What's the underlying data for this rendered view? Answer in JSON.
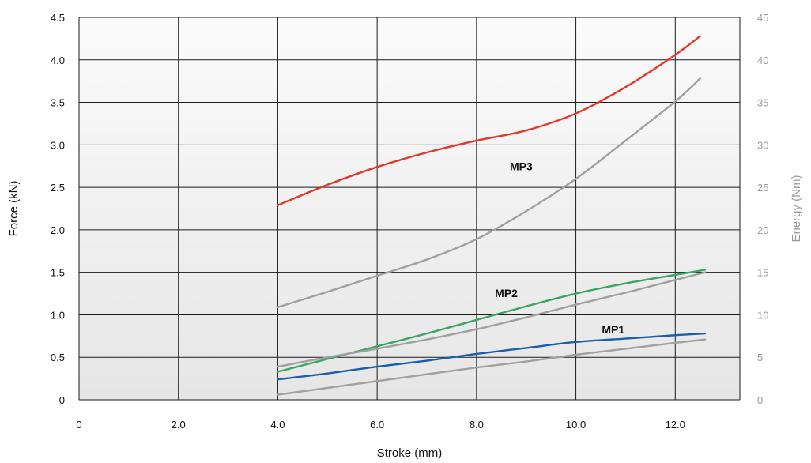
{
  "chart_data": {
    "type": "line",
    "xlabel": "Stroke (mm)",
    "ylabel": "Force (kN)",
    "y2label": "Energy (Nm)",
    "xlim": [
      0,
      13.3
    ],
    "ylim": [
      0,
      4.5
    ],
    "y2lim": [
      0,
      45
    ],
    "x_ticks": [
      0,
      2.0,
      4.0,
      6.0,
      8.0,
      10.0,
      12.0
    ],
    "x_tick_labels": [
      "0",
      "2.0",
      "4.0",
      "6.0",
      "8.0",
      "10.0",
      "12.0"
    ],
    "y_ticks": [
      0,
      0.5,
      1.0,
      1.5,
      2.0,
      2.5,
      3.0,
      3.5,
      4.0,
      4.5
    ],
    "y_tick_labels": [
      "0",
      "0.5",
      "1.0",
      "1.5",
      "2.0",
      "2.5",
      "3.0",
      "3.5",
      "4.0",
      "4.5"
    ],
    "y2_ticks": [
      0,
      5,
      10,
      15,
      20,
      25,
      30,
      35,
      40,
      45
    ],
    "y2_tick_labels": [
      "0",
      "5",
      "10",
      "15",
      "20",
      "25",
      "30",
      "35",
      "40",
      "45"
    ],
    "grid": true,
    "series": [
      {
        "name": "MP3",
        "axis": "left",
        "color": "#e03a2a",
        "x": [
          4.0,
          5.0,
          6.0,
          7.0,
          8.0,
          9.0,
          10.0,
          11.0,
          12.0,
          12.5
        ],
        "y": [
          2.29,
          2.53,
          2.74,
          2.91,
          3.05,
          3.17,
          3.37,
          3.68,
          4.06,
          4.28
        ]
      },
      {
        "name": "",
        "axis": "right",
        "color": "#a0a0a0",
        "x": [
          4.0,
          5.0,
          6.0,
          7.0,
          8.0,
          9.0,
          10.0,
          11.0,
          12.0,
          12.5
        ],
        "y": [
          10.9,
          12.7,
          14.6,
          16.5,
          18.9,
          22.2,
          26.0,
          30.5,
          35.1,
          37.8
        ]
      },
      {
        "name": "MP2",
        "axis": "left",
        "color": "#3aa564",
        "x": [
          4.0,
          5.0,
          6.0,
          7.0,
          8.0,
          9.0,
          10.0,
          11.0,
          12.0,
          12.6
        ],
        "y": [
          0.33,
          0.48,
          0.63,
          0.78,
          0.94,
          1.1,
          1.25,
          1.37,
          1.47,
          1.53
        ]
      },
      {
        "name": "",
        "axis": "right",
        "color": "#a0a0a0",
        "x": [
          4.0,
          5.0,
          6.0,
          7.0,
          8.0,
          9.0,
          10.0,
          11.0,
          12.0,
          12.6
        ],
        "y": [
          3.9,
          5.0,
          6.0,
          7.1,
          8.3,
          9.7,
          11.2,
          12.6,
          14.1,
          15.0
        ]
      },
      {
        "name": "MP1",
        "axis": "left",
        "color": "#1a5fa8",
        "x": [
          4.0,
          5.0,
          6.0,
          7.0,
          8.0,
          9.0,
          10.0,
          11.0,
          12.0,
          12.6
        ],
        "y": [
          0.24,
          0.31,
          0.39,
          0.46,
          0.54,
          0.61,
          0.68,
          0.72,
          0.76,
          0.78
        ]
      },
      {
        "name": "",
        "axis": "right",
        "color": "#a0a0a0",
        "x": [
          4.0,
          5.0,
          6.0,
          7.0,
          8.0,
          9.0,
          10.0,
          11.0,
          12.0,
          12.6
        ],
        "y": [
          0.6,
          1.4,
          2.2,
          3.0,
          3.8,
          4.5,
          5.3,
          6.0,
          6.7,
          7.1
        ]
      }
    ],
    "annotations": [
      {
        "text": "MP3",
        "x": 8.9,
        "y": 2.7
      },
      {
        "text": "MP2",
        "x": 8.6,
        "y": 1.21
      },
      {
        "text": "MP1",
        "x": 10.75,
        "y": 0.78
      }
    ]
  }
}
